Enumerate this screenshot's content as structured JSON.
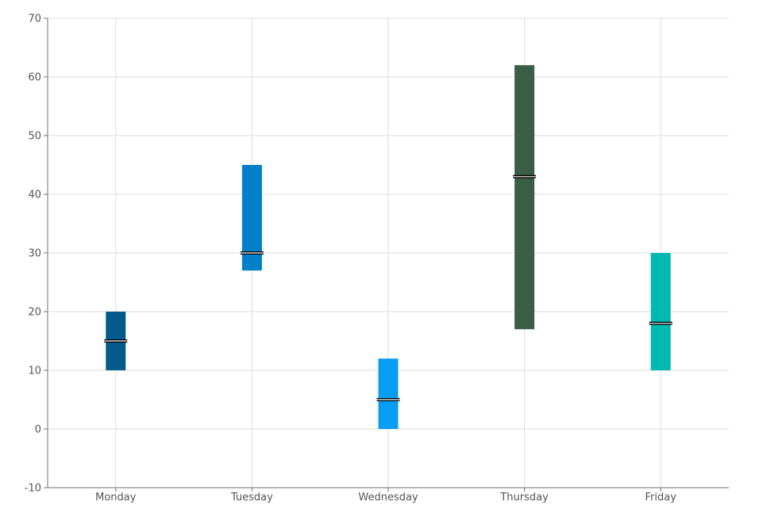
{
  "chart_data": {
    "type": "bar",
    "subtype": "floating-range-with-marker",
    "title": "",
    "xlabel": "",
    "ylabel": "",
    "categories": [
      "Monday",
      "Tuesday",
      "Wednesday",
      "Thursday",
      "Friday"
    ],
    "ylim": [
      -10,
      70
    ],
    "yticks": [
      -10,
      0,
      10,
      20,
      30,
      40,
      50,
      60,
      70
    ],
    "grid": true,
    "legend": "none",
    "series": [
      {
        "low": [
          10,
          27,
          0,
          17,
          10
        ],
        "high": [
          20,
          45,
          12,
          62,
          30
        ],
        "marker": [
          15,
          30,
          5,
          43,
          18
        ],
        "colors": [
          "#045a8d",
          "#0080c6",
          "#069ef3",
          "#395e45",
          "#00b9b0"
        ]
      }
    ]
  }
}
